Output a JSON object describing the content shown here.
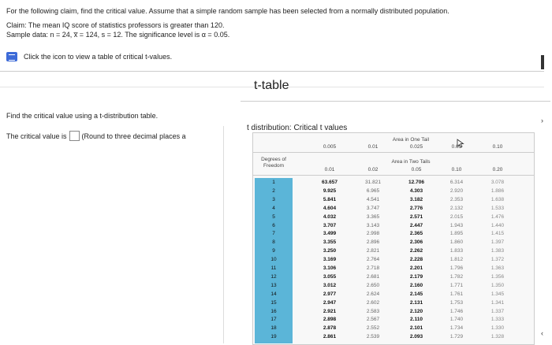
{
  "problem": {
    "line1": "For the following claim, find the critical value. Assume that a simple random sample has been selected from a normally distributed population.",
    "line2": "Claim: The mean IQ score of statistics professors is greater than 120.",
    "line3": "Sample data: n = 24, x̅ = 124, s = 12. The significance level is α = 0.05.",
    "help_link": "Click the icon to view a table of critical t-values."
  },
  "left": {
    "question": "Find the critical value using a t-distribution table.",
    "critical_prefix": "The critical value is",
    "critical_suffix": "(Round to three decimal places a"
  },
  "modal": {
    "title": "t-table",
    "subtitle": "t distribution: Critical t values"
  },
  "table": {
    "one_tail_label": "Area in One Tail",
    "two_tail_label": "Area in Two Tails",
    "dof_label_1": "Degrees of",
    "dof_label_2": "Freedom",
    "one_tail": [
      "0.005",
      "0.01",
      "0.025",
      "0.05",
      "0.10"
    ],
    "two_tail": [
      "0.01",
      "0.02",
      "0.05",
      "0.10",
      "0.20"
    ],
    "rows": [
      [
        "1",
        "63.657",
        "31.821",
        "12.706",
        "6.314",
        "3.078"
      ],
      [
        "2",
        "9.925",
        "6.965",
        "4.303",
        "2.920",
        "1.886"
      ],
      [
        "3",
        "5.841",
        "4.541",
        "3.182",
        "2.353",
        "1.638"
      ],
      [
        "4",
        "4.604",
        "3.747",
        "2.776",
        "2.132",
        "1.533"
      ],
      [
        "5",
        "4.032",
        "3.365",
        "2.571",
        "2.015",
        "1.476"
      ],
      [
        "6",
        "3.707",
        "3.143",
        "2.447",
        "1.943",
        "1.440"
      ],
      [
        "7",
        "3.499",
        "2.998",
        "2.365",
        "1.895",
        "1.415"
      ],
      [
        "8",
        "3.355",
        "2.896",
        "2.306",
        "1.860",
        "1.397"
      ],
      [
        "9",
        "3.250",
        "2.821",
        "2.262",
        "1.833",
        "1.383"
      ],
      [
        "10",
        "3.169",
        "2.764",
        "2.228",
        "1.812",
        "1.372"
      ],
      [
        "11",
        "3.106",
        "2.718",
        "2.201",
        "1.796",
        "1.363"
      ],
      [
        "12",
        "3.055",
        "2.681",
        "2.179",
        "1.782",
        "1.356"
      ],
      [
        "13",
        "3.012",
        "2.650",
        "2.160",
        "1.771",
        "1.350"
      ],
      [
        "14",
        "2.977",
        "2.624",
        "2.145",
        "1.761",
        "1.345"
      ],
      [
        "15",
        "2.947",
        "2.602",
        "2.131",
        "1.753",
        "1.341"
      ],
      [
        "16",
        "2.921",
        "2.583",
        "2.120",
        "1.746",
        "1.337"
      ],
      [
        "17",
        "2.898",
        "2.567",
        "2.110",
        "1.740",
        "1.333"
      ],
      [
        "18",
        "2.878",
        "2.552",
        "2.101",
        "1.734",
        "1.330"
      ],
      [
        "19",
        "2.861",
        "2.539",
        "2.093",
        "1.729",
        "1.328"
      ]
    ]
  },
  "colors": {
    "accent": "#3d6bd8",
    "dof_column": "#5bb5d8",
    "table_bg": "#f8f8f8"
  },
  "icons": {
    "help": "table-icon",
    "expand_left": "chevron-left-icon",
    "expand_right": "chevron-right-icon"
  }
}
